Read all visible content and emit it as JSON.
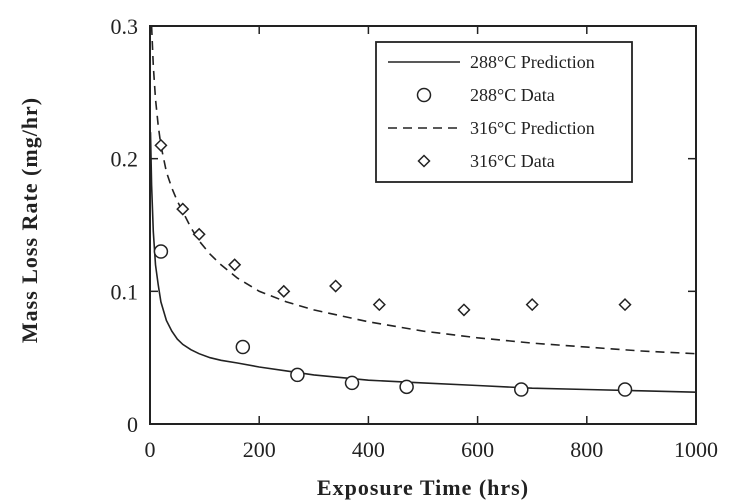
{
  "chart_data": {
    "type": "scatter",
    "title": "",
    "xlabel": "Exposure Time (hrs)",
    "ylabel": "Mass Loss Rate (mg/hr)",
    "xlim": [
      0,
      1000
    ],
    "ylim": [
      0,
      0.3
    ],
    "xticks": [
      {
        "value": 0,
        "label": "0"
      },
      {
        "value": 200,
        "label": "200"
      },
      {
        "value": 400,
        "label": "400"
      },
      {
        "value": 600,
        "label": "600"
      },
      {
        "value": 800,
        "label": "800"
      },
      {
        "value": 1000,
        "label": "1000"
      }
    ],
    "yticks": [
      {
        "value": 0,
        "label": "0"
      },
      {
        "value": 0.1,
        "label": "0.1"
      },
      {
        "value": 0.2,
        "label": "0.2"
      },
      {
        "value": 0.3,
        "label": "0.3"
      }
    ],
    "grid": false,
    "legend_position": "top-right",
    "series": [
      {
        "name": "288°C Prediction",
        "kind": "line",
        "style": "solid",
        "color": "#222222",
        "x": [
          1,
          3,
          6,
          10,
          15,
          20,
          30,
          40,
          50,
          60,
          75,
          90,
          110,
          130,
          160,
          200,
          250,
          300,
          350,
          400,
          500,
          600,
          700,
          800,
          900,
          1000
        ],
        "y": [
          0.22,
          0.18,
          0.145,
          0.12,
          0.105,
          0.092,
          0.078,
          0.07,
          0.064,
          0.06,
          0.056,
          0.053,
          0.05,
          0.048,
          0.046,
          0.043,
          0.04,
          0.037,
          0.035,
          0.033,
          0.031,
          0.029,
          0.027,
          0.026,
          0.025,
          0.024
        ]
      },
      {
        "name": "288°C Data",
        "kind": "scatter",
        "marker": "circle",
        "color": "#222222",
        "x": [
          20,
          170,
          270,
          370,
          470,
          680,
          870
        ],
        "y": [
          0.13,
          0.058,
          0.037,
          0.031,
          0.028,
          0.026,
          0.026
        ]
      },
      {
        "name": "316°C Prediction",
        "kind": "line",
        "style": "dashed",
        "color": "#222222",
        "x": [
          3,
          6,
          10,
          15,
          20,
          30,
          40,
          50,
          60,
          75,
          90,
          110,
          130,
          160,
          200,
          250,
          300,
          400,
          500,
          600,
          700,
          800,
          900,
          1000
        ],
        "y": [
          0.3,
          0.27,
          0.245,
          0.225,
          0.21,
          0.19,
          0.178,
          0.168,
          0.16,
          0.148,
          0.138,
          0.128,
          0.12,
          0.11,
          0.1,
          0.092,
          0.086,
          0.077,
          0.07,
          0.065,
          0.061,
          0.058,
          0.055,
          0.053
        ]
      },
      {
        "name": "316°C Data",
        "kind": "scatter",
        "marker": "diamond",
        "color": "#222222",
        "x": [
          20,
          60,
          90,
          155,
          245,
          340,
          420,
          575,
          700,
          870
        ],
        "y": [
          0.21,
          0.162,
          0.143,
          0.12,
          0.1,
          0.104,
          0.09,
          0.086,
          0.09,
          0.09
        ]
      }
    ]
  }
}
